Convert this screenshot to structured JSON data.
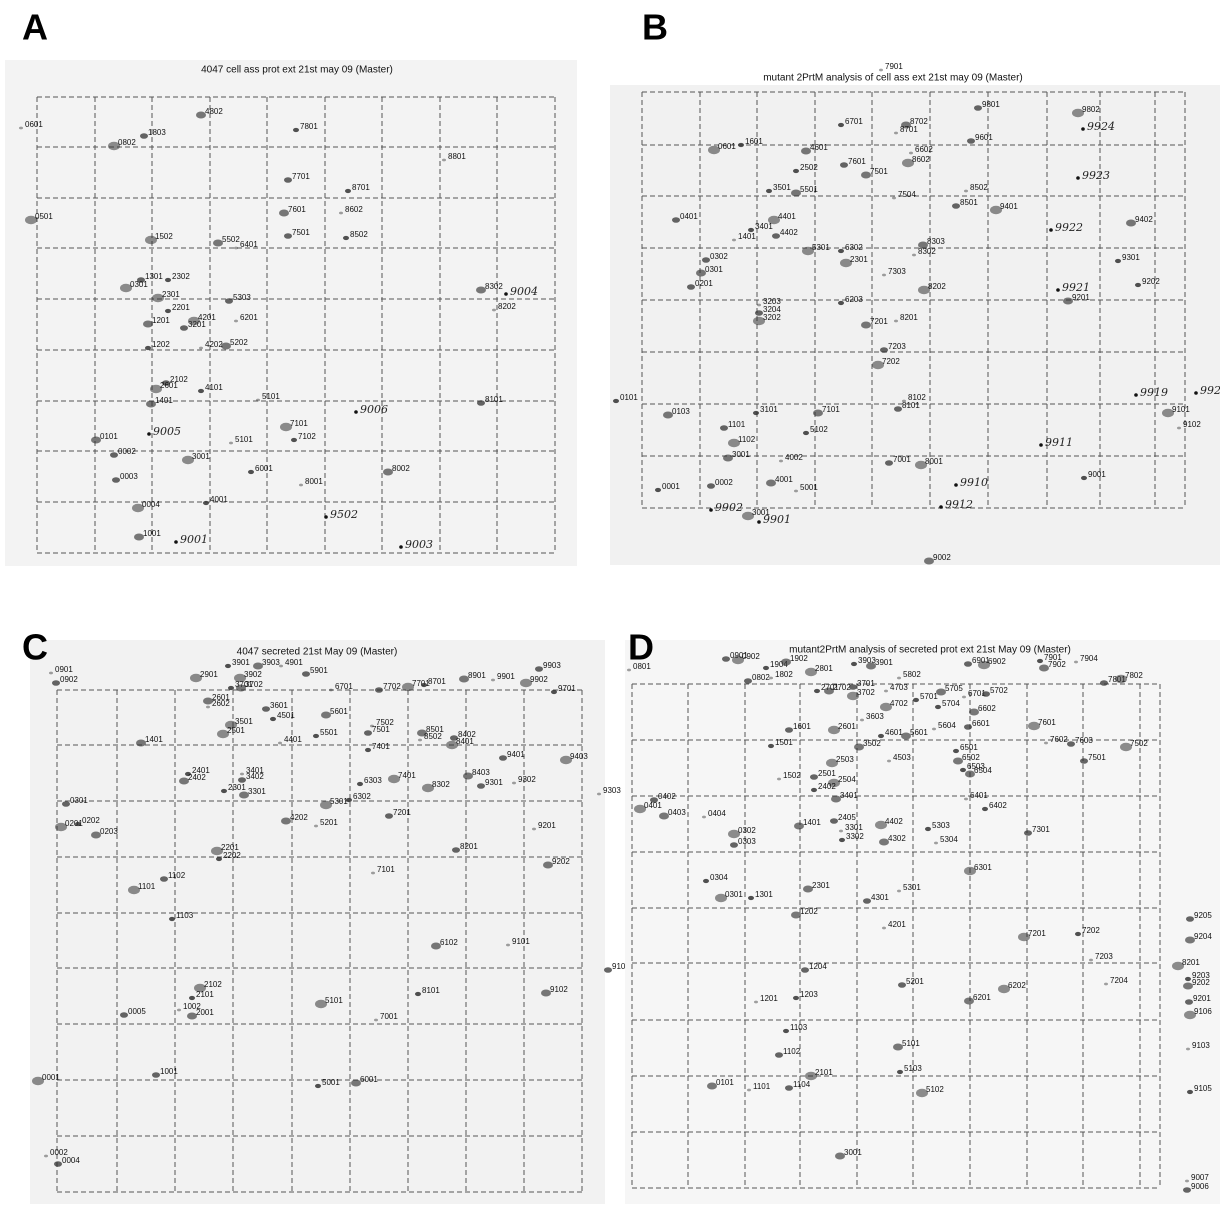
{
  "panels": [
    {
      "letter": "A",
      "title": "4047 cell ass prot ext 21st may 09 (Master)",
      "spots": [
        "0601",
        "1803",
        "0802",
        "7801",
        "4802",
        "8801",
        "7701",
        "0501",
        "8701",
        "7601",
        "8602",
        "7501",
        "1502",
        "8502",
        "5502",
        "6401",
        "1301",
        "0301",
        "2302",
        "8302",
        "8202",
        "5303",
        "2301",
        "2201",
        "1201",
        "6201",
        "3201",
        "4201",
        "1202",
        "5202",
        "4202",
        "2102",
        "2601",
        "4101",
        "1401",
        "5101",
        "8101",
        "7101",
        "7102",
        "0101",
        "5101",
        "0002",
        "3001",
        "6001",
        "8002",
        "8001",
        "0003",
        "0004",
        "4001",
        "1001"
      ],
      "handwritten": [
        "9004",
        "9006",
        "9005",
        "9502",
        "9003",
        "9001"
      ]
    },
    {
      "letter": "B",
      "title": "mutant 2PrtM analysis of cell ass ext 21st may 09 (Master)",
      "spots": [
        "7901",
        "9801",
        "9802",
        "6701",
        "8702",
        "8701",
        "9601",
        "0601",
        "1601",
        "4601",
        "6602",
        "7601",
        "8602",
        "2502",
        "7501",
        "8502",
        "8501",
        "9401",
        "3501",
        "5501",
        "7504",
        "0401",
        "4401",
        "3401",
        "9402",
        "1401",
        "4402",
        "5301",
        "6302",
        "8303",
        "8302",
        "0302",
        "2301",
        "9301",
        "0301",
        "7303",
        "0201",
        "8202",
        "9202",
        "9201",
        "3203",
        "3204",
        "3202",
        "6203",
        "7201",
        "8201",
        "7203",
        "7202",
        "0101",
        "0103",
        "8102",
        "8101",
        "9101",
        "3101",
        "7101",
        "9102",
        "1101",
        "1102",
        "5102",
        "3001",
        "4002",
        "7001",
        "8001",
        "0001",
        "4001",
        "5001",
        "0002",
        "3001",
        "9001",
        "9002"
      ],
      "handwritten": [
        "9924",
        "9923",
        "9922",
        "9921",
        "9920",
        "9919",
        "9911",
        "9910",
        "9912",
        "9901",
        "9902"
      ]
    },
    {
      "letter": "C",
      "title": "4047 secreted 21st May 09 (Master)",
      "spots": [
        "0901",
        "0902",
        "2901",
        "3901",
        "3903",
        "4901",
        "5901",
        "3902",
        "3701",
        "3702",
        "6701",
        "7702",
        "7701",
        "8701",
        "8901",
        "9901",
        "9903",
        "9902",
        "9701",
        "2601",
        "2602",
        "3601",
        "3501",
        "4501",
        "5601",
        "7502",
        "7501",
        "2501",
        "5501",
        "8501",
        "8502",
        "8402",
        "8401",
        "7401",
        "1401",
        "4401",
        "9401",
        "9403",
        "2401",
        "2402",
        "3401",
        "3402",
        "7401",
        "6303",
        "8403",
        "9302",
        "9301",
        "8302",
        "2301",
        "3301",
        "9303",
        "0301",
        "5301",
        "6302",
        "4202",
        "5201",
        "7201",
        "0201",
        "0202",
        "0203",
        "9201",
        "8201",
        "2201",
        "2202",
        "9202",
        "7101",
        "1102",
        "1101",
        "1103",
        "6102",
        "9101",
        "9103",
        "2102",
        "2101",
        "9102",
        "1002",
        "0005",
        "5101",
        "8101",
        "2001",
        "7001",
        "1001",
        "0001",
        "5001",
        "6001",
        "0002",
        "0004"
      ],
      "handwritten": []
    },
    {
      "letter": "D",
      "title": "mutant2PrtM analysis of secreted prot ext 21st May 09 (Master)",
      "spots": [
        "0801",
        "0901",
        "0902",
        "1904",
        "1902",
        "1802",
        "0802",
        "2801",
        "3903",
        "3901",
        "5802",
        "6901",
        "6902",
        "7901",
        "7902",
        "7904",
        "7801",
        "7802",
        "2701",
        "2702",
        "4703",
        "3701",
        "3702",
        "5701",
        "5705",
        "6701",
        "5702",
        "4702",
        "5704",
        "6602",
        "3603",
        "1601",
        "2601",
        "4601",
        "5601",
        "5604",
        "6601",
        "7601",
        "1501",
        "3502",
        "7602",
        "7603",
        "7502",
        "6501",
        "6502",
        "4503",
        "7501",
        "2503",
        "6503",
        "6504",
        "1502",
        "2501",
        "2504",
        "2402",
        "3401",
        "6401",
        "0402",
        "0401",
        "6402",
        "0403",
        "0404",
        "2405",
        "4402",
        "5303",
        "1401",
        "3301",
        "7301",
        "0302",
        "3302",
        "4302",
        "5304",
        "0303",
        "6301",
        "0304",
        "2301",
        "5301",
        "4301",
        "0301",
        "1301",
        "1202",
        "4201",
        "9205",
        "7201",
        "7202",
        "9204",
        "7203",
        "1204",
        "8201",
        "9203",
        "9202",
        "7204",
        "5201",
        "6202",
        "1203",
        "6201",
        "1201",
        "9201",
        "9106",
        "1103",
        "5101",
        "9103",
        "1102",
        "2101",
        "5103",
        "0101",
        "1101",
        "1104",
        "5102",
        "9105",
        "3001",
        "9007",
        "9006"
      ],
      "handwritten": []
    }
  ]
}
